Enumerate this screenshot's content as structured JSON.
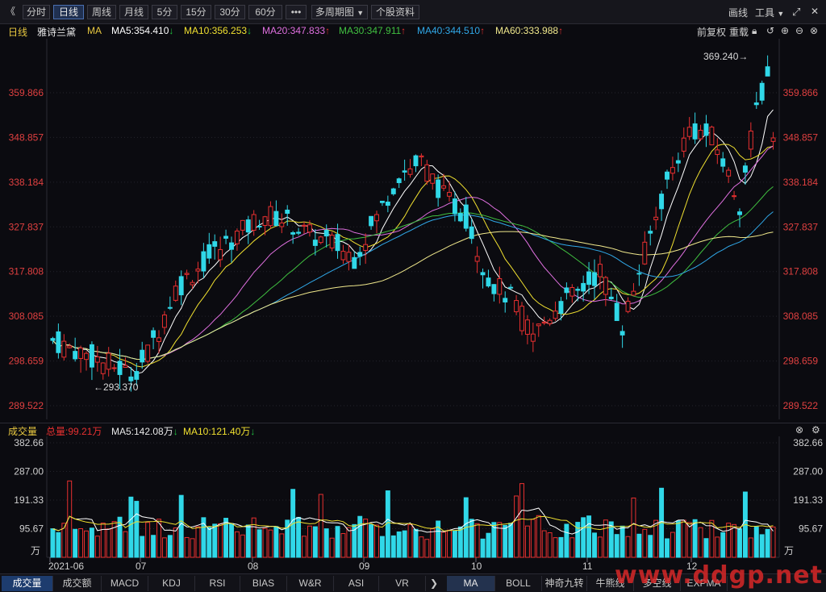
{
  "toolbar": {
    "back_label": "《",
    "period_tabs": [
      "分时",
      "日线",
      "周线",
      "月线",
      "5分",
      "15分",
      "30分",
      "60分"
    ],
    "active_tab_index": 1,
    "more_label": "•••",
    "multi_period_label": "多周期图",
    "stock_info_label": "个股资料",
    "draw_label": "画线",
    "tools_label": "工具",
    "colors": {
      "accent": "#4a6fb0"
    }
  },
  "infobar": {
    "period": "日线",
    "stock_name": "雅诗兰黛",
    "ma_label": "MA",
    "indicators": [
      {
        "name": "MA5",
        "value": "354.410",
        "dir": "down",
        "color": "#ffffff"
      },
      {
        "name": "MA10",
        "value": "356.253",
        "dir": "down",
        "color": "#f0e030"
      },
      {
        "name": "MA20",
        "value": "347.833",
        "dir": "up",
        "color": "#e070e0"
      },
      {
        "name": "MA30",
        "value": "347.911",
        "dir": "up",
        "color": "#40c040"
      },
      {
        "name": "MA40",
        "value": "344.510",
        "dir": "up",
        "color": "#30a8e8"
      },
      {
        "name": "MA60",
        "value": "333.988",
        "dir": "up",
        "color": "#f0e88c"
      }
    ],
    "prev_adjust": "前复权",
    "redraw": "重载"
  },
  "price_axis": {
    "labels": [
      "359.866",
      "348.857",
      "338.184",
      "327.837",
      "317.808",
      "308.085",
      "298.659",
      "289.522"
    ],
    "values": [
      359.866,
      348.857,
      338.184,
      327.837,
      317.808,
      308.085,
      298.659,
      289.522
    ],
    "high_label": "369.240",
    "low_label": "293.370"
  },
  "volume": {
    "title": "成交量",
    "total_label": "总量:99.21万",
    "ma5_label": "MA5:142.08万",
    "ma10_label": "MA10:121.40万",
    "axis_labels": [
      "382.66",
      "287.00",
      "191.33",
      "95.67"
    ],
    "axis_values": [
      382.66,
      287.0,
      191.33,
      95.67
    ],
    "unit": "万"
  },
  "date_axis": {
    "labels": [
      "2021-06",
      "07",
      "08",
      "09",
      "10",
      "11",
      "12"
    ]
  },
  "bottom_tabs": {
    "left": [
      "成交量",
      "成交额",
      "MACD",
      "KDJ",
      "RSI",
      "BIAS",
      "W&R",
      "ASI",
      "VR"
    ],
    "right": [
      "MA",
      "BOLL",
      "神奇九转",
      "牛熊线",
      "多空线",
      "EXPMA"
    ]
  },
  "watermark": "www.ddgp.net"
}
